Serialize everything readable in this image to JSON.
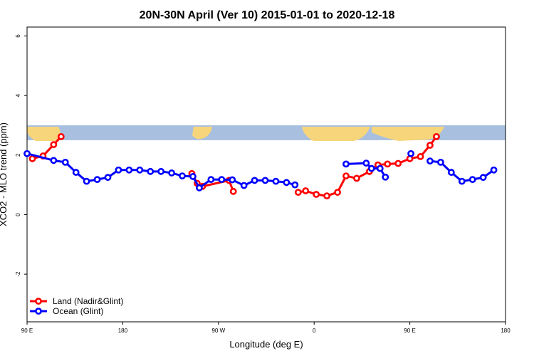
{
  "chart_data": {
    "type": "line",
    "title": "20N-30N April (Ver 10)   2015-01-01 to 2020-12-18",
    "xlabel": "Longitude (deg E)",
    "ylabel": "XCO2 - MLO trend (ppm)",
    "xlim": [
      90,
      540
    ],
    "ylim": [
      -3.6,
      6.3
    ],
    "x_ticks": [
      {
        "value": 90,
        "label": "90 E"
      },
      {
        "value": 180,
        "label": "180"
      },
      {
        "value": 270,
        "label": "90 W"
      },
      {
        "value": 360,
        "label": "0"
      },
      {
        "value": 450,
        "label": "90 E"
      },
      {
        "value": 540,
        "label": "180"
      }
    ],
    "y_ticks": [
      {
        "value": -2,
        "label": "-2"
      },
      {
        "value": 0,
        "label": "0"
      },
      {
        "value": 2,
        "label": "2"
      },
      {
        "value": 4,
        "label": "4"
      },
      {
        "value": 6,
        "label": "6"
      }
    ],
    "map_band": {
      "ymin": 2.5,
      "ymax": 3.0,
      "ocean_color": "#a9bfdf",
      "land_color": "#f7d57a"
    },
    "series": [
      {
        "name": "Land (Nadir&Glint)",
        "color": "#ff0000",
        "segments": [
          [
            [
              95,
              1.88
            ],
            [
              105,
              1.97
            ],
            [
              115,
              2.35
            ],
            [
              122,
              2.62
            ]
          ],
          [
            [
              245,
              1.38
            ],
            [
              250,
              1.05
            ],
            [
              255,
              0.95
            ],
            [
              280,
              1.15
            ],
            [
              284,
              0.78
            ]
          ],
          [
            [
              345,
              0.75
            ],
            [
              352,
              0.8
            ],
            [
              362,
              0.68
            ],
            [
              372,
              0.63
            ],
            [
              382,
              0.75
            ],
            [
              390,
              1.3
            ],
            [
              400,
              1.22
            ],
            [
              412,
              1.45
            ],
            [
              420,
              1.67
            ],
            [
              429,
              1.7
            ],
            [
              439,
              1.72
            ],
            [
              450,
              1.88
            ],
            [
              460,
              1.95
            ],
            [
              469,
              2.33
            ],
            [
              475,
              2.62
            ]
          ]
        ]
      },
      {
        "name": "Ocean (Glint)",
        "color": "#0000ff",
        "segments": [
          [
            [
              90,
              2.05
            ],
            [
              115,
              1.82
            ],
            [
              126,
              1.76
            ],
            [
              136,
              1.42
            ],
            [
              146,
              1.12
            ],
            [
              156,
              1.18
            ],
            [
              166,
              1.25
            ],
            [
              176,
              1.5
            ],
            [
              186,
              1.5
            ],
            [
              196,
              1.5
            ],
            [
              206,
              1.45
            ],
            [
              216,
              1.45
            ],
            [
              226,
              1.4
            ],
            [
              236,
              1.3
            ],
            [
              246,
              1.28
            ],
            [
              252,
              0.9
            ],
            [
              263,
              1.18
            ],
            [
              273,
              1.18
            ],
            [
              283,
              1.17
            ],
            [
              294,
              0.98
            ],
            [
              304,
              1.15
            ],
            [
              314,
              1.15
            ],
            [
              324,
              1.12
            ],
            [
              334,
              1.08
            ],
            [
              342,
              1.0
            ]
          ],
          [
            [
              390,
              1.7
            ],
            [
              409,
              1.73
            ],
            [
              414,
              1.55
            ],
            [
              422,
              1.55
            ],
            [
              427,
              1.26
            ]
          ],
          [
            [
              451,
              2.05
            ]
          ],
          [
            [
              469,
              1.8
            ],
            [
              479,
              1.76
            ],
            [
              489,
              1.42
            ],
            [
              499,
              1.12
            ],
            [
              509,
              1.18
            ],
            [
              519,
              1.25
            ],
            [
              529,
              1.5
            ]
          ]
        ]
      }
    ],
    "legend_position": "bottom-left",
    "grid": false
  }
}
